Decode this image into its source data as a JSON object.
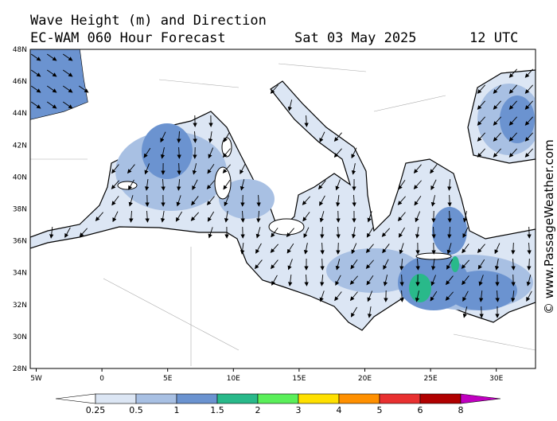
{
  "header": {
    "title": "Wave Height (m) and Direction",
    "model": "EC-WAM 060 Hour Forecast",
    "date": "Sat 03 May 2025",
    "time": "12 UTC"
  },
  "map": {
    "lat_labels": [
      "48N",
      "46N",
      "44N",
      "42N",
      "40N",
      "38N",
      "36N",
      "34N",
      "32N",
      "30N",
      "28N"
    ],
    "lon_labels": [
      "5W",
      "0",
      "5E",
      "10E",
      "15E",
      "20E",
      "25E",
      "30E"
    ]
  },
  "legend": {
    "ticks": [
      "0.25",
      "0.5",
      "1",
      "1.5",
      "2",
      "3",
      "4",
      "5",
      "6",
      "8"
    ],
    "colors": [
      "#ffffff",
      "#dce6f4",
      "#a8c0e3",
      "#6b93d0",
      "#29b98a",
      "#5aef5a",
      "#ffe000",
      "#ff9000",
      "#e83030",
      "#b00000",
      "#c000c0"
    ]
  },
  "credit": "© www.PassageWeather.com"
}
